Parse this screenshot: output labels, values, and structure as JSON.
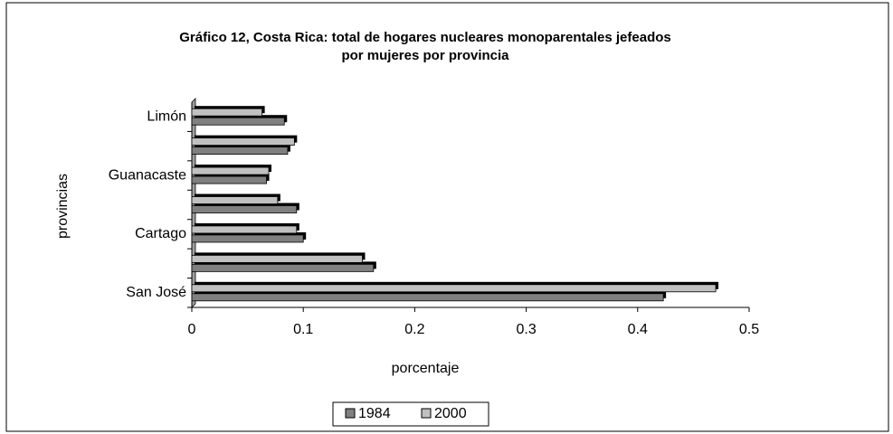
{
  "chart_data": {
    "type": "bar",
    "orientation": "horizontal",
    "title": "Gráfico 12, Costa Rica: total de hogares  nucleares monoparentales jefeados",
    "subtitle": "por mujeres por provincia",
    "x_label": "porcentaje",
    "y_label": "provincias",
    "categories": [
      "San José",
      null,
      "Cartago",
      null,
      "Guanacaste",
      null,
      "Limón"
    ],
    "series": [
      {
        "name": "1984",
        "color": "#808080",
        "values": [
          0.423,
          0.163,
          0.1,
          0.094,
          0.067,
          0.086,
          0.083
        ]
      },
      {
        "name": "2000",
        "color": "#c0c0c0",
        "values": [
          0.47,
          0.153,
          0.094,
          0.077,
          0.069,
          0.092,
          0.063
        ]
      }
    ],
    "xlim": [
      0,
      0.5
    ],
    "xticks": [
      0,
      0.1,
      0.2,
      0.3,
      0.4,
      0.5
    ],
    "legend": "bottom"
  }
}
